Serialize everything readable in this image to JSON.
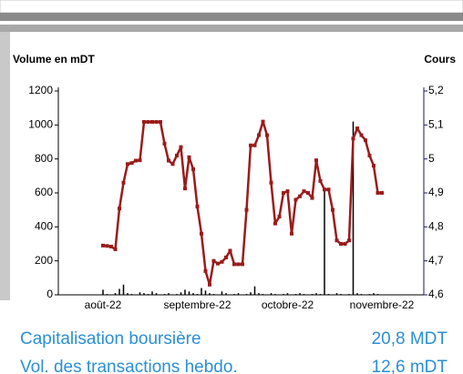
{
  "chart_data": {
    "type": "bar-line",
    "ylabel": "Volume en mDT",
    "y2label": "Cours",
    "categories": [
      "août-22",
      null,
      null,
      null,
      null,
      null,
      null,
      null,
      null,
      null,
      null,
      null,
      null,
      null,
      null,
      null,
      null,
      null,
      null,
      null,
      null,
      null,
      null,
      "septembre-22",
      null,
      null,
      null,
      null,
      null,
      null,
      null,
      null,
      null,
      null,
      null,
      null,
      null,
      null,
      null,
      null,
      null,
      null,
      null,
      null,
      null,
      "octobre-22",
      null,
      null,
      null,
      null,
      null,
      null,
      null,
      null,
      null,
      null,
      null,
      null,
      null,
      null,
      null,
      null,
      null,
      null,
      null,
      null,
      null,
      null,
      "novembre-22"
    ],
    "series": [
      {
        "type": "bar",
        "axis": "y",
        "color": "#000000",
        "values": [
          30,
          5,
          0,
          10,
          35,
          60,
          10,
          5,
          0,
          15,
          10,
          5,
          20,
          10,
          0,
          5,
          10,
          0,
          5,
          15,
          30,
          20,
          10,
          5,
          40,
          25,
          10,
          5,
          0,
          20,
          10,
          0,
          5,
          10,
          0,
          5,
          15,
          50,
          10,
          5,
          0,
          10,
          5,
          0,
          5,
          10,
          0,
          5,
          10,
          5,
          0,
          5,
          10,
          5,
          620,
          5,
          0,
          10,
          5,
          0,
          5,
          1020,
          10,
          5,
          0,
          5,
          10,
          5,
          0
        ]
      },
      {
        "type": "line",
        "axis": "y2",
        "color": "#9b1b1b",
        "values": [
          4.745,
          4.744,
          4.742,
          4.734,
          4.854,
          4.93,
          4.985,
          4.988,
          4.995,
          4.996,
          5.109,
          5.109,
          5.109,
          5.109,
          5.109,
          5.045,
          4.995,
          4.985,
          5.01,
          5.035,
          4.913,
          5.005,
          4.97,
          4.86,
          4.78,
          4.67,
          4.63,
          4.7,
          4.692,
          4.697,
          4.71,
          4.73,
          4.69,
          4.69,
          4.69,
          4.85,
          5.04,
          5.04,
          5.07,
          5.11,
          5.07,
          4.93,
          4.81,
          4.83,
          4.9,
          4.905,
          4.78,
          4.88,
          4.89,
          4.905,
          4.9,
          4.885,
          4.996,
          4.935,
          4.91,
          4.91,
          4.85,
          4.76,
          4.75,
          4.75,
          4.76,
          5.06,
          5.09,
          5.07,
          5.055,
          5.01,
          4.98,
          4.9,
          4.9
        ]
      }
    ],
    "ylim": [
      0,
      1200
    ],
    "yticks": [
      0,
      200,
      400,
      600,
      800,
      1000,
      1200
    ],
    "y2lim": [
      4.6,
      5.2
    ],
    "y2ticks": [
      {
        "value": 4.6,
        "label": "4,6"
      },
      {
        "value": 4.7,
        "label": "4,7"
      },
      {
        "value": 4.8,
        "label": "4,8"
      },
      {
        "value": 4.9,
        "label": "4,9"
      },
      5,
      {
        "value": 5.1,
        "label": "5,1"
      },
      {
        "value": 5.2,
        "label": "5,2"
      }
    ]
  },
  "info": {
    "rows": [
      {
        "label": "Capitalisation boursière",
        "value": "20,8 MDT"
      },
      {
        "label": "Vol. des transactions hebdo.",
        "value": "12,6 mDT"
      }
    ]
  }
}
